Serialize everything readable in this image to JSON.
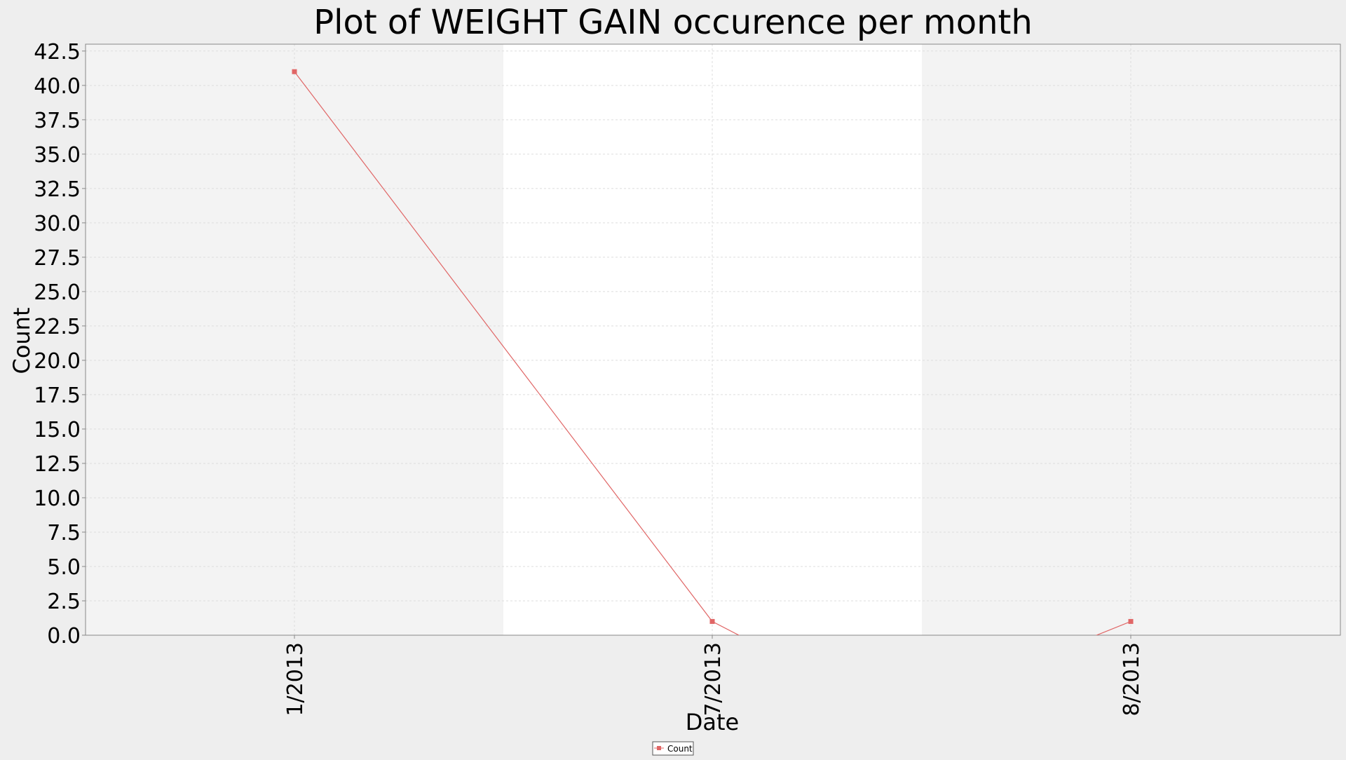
{
  "chart_data": {
    "type": "line",
    "title": "Plot of WEIGHT GAIN occurence per month",
    "xlabel": "Date",
    "ylabel": "Count",
    "x_tick_labels": [
      "1/2013",
      "7/2013",
      "8/2013"
    ],
    "series": [
      {
        "name": "Count",
        "x": [
          "1/2013",
          "7/2013",
          "8/2013"
        ],
        "values": [
          41,
          1,
          1
        ],
        "color": "#e06666"
      }
    ],
    "ylim": [
      0,
      43
    ],
    "y_ticks": [
      "0.0",
      "2.5",
      "5.0",
      "7.5",
      "10.0",
      "12.5",
      "15.0",
      "17.5",
      "20.0",
      "22.5",
      "25.0",
      "27.5",
      "30.0",
      "32.5",
      "35.0",
      "37.5",
      "40.0",
      "42.5"
    ],
    "grid": true,
    "legend": {
      "position": "bottom-center",
      "entries": [
        "Count"
      ]
    },
    "colors": {
      "background": "#eeeeee",
      "band_shaded": "#f3f3f3",
      "band_clear": "#ffffff",
      "grid": "#dddddd",
      "axis": "#888888",
      "line": "#e06666"
    }
  }
}
